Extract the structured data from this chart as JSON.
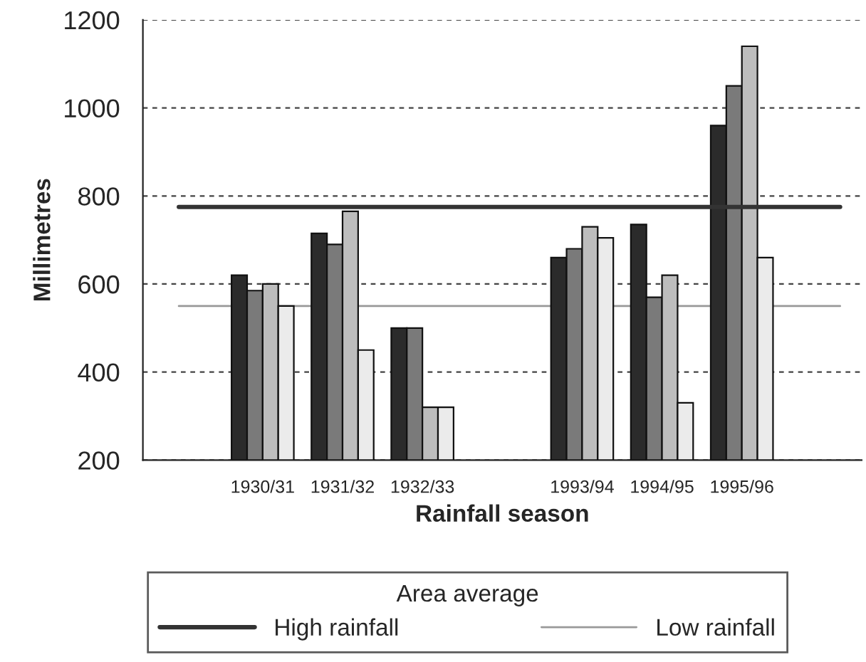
{
  "chart_data": {
    "type": "bar",
    "xlabel": "Rainfall season",
    "ylabel": "Millimetres",
    "legend_title": "Area average",
    "categories": [
      null,
      "1930/31",
      "1931/32",
      "1932/33",
      null,
      "1993/94",
      "1994/95",
      "1995/96",
      null
    ],
    "series": [
      {
        "color": "#2b2b2b",
        "values": [
          null,
          620,
          715,
          500,
          null,
          660,
          735,
          960,
          null
        ]
      },
      {
        "color": "#7a7a7a",
        "values": [
          null,
          585,
          690,
          500,
          null,
          680,
          570,
          1050,
          null
        ]
      },
      {
        "color": "#bdbdbd",
        "values": [
          null,
          600,
          765,
          320,
          null,
          730,
          620,
          1140,
          null
        ]
      },
      {
        "color": "#ebebeb",
        "values": [
          null,
          550,
          450,
          320,
          null,
          705,
          330,
          660,
          null
        ]
      }
    ],
    "ylim": [
      200,
      1200
    ],
    "yticks": [
      200,
      400,
      600,
      800,
      1000,
      1200
    ],
    "ref_lines": [
      {
        "axis": "y",
        "value": 775,
        "label": "High rainfall",
        "color": "#333333"
      },
      {
        "axis": "y",
        "value": 550,
        "label": "Low rainfall",
        "color": "#999999"
      }
    ],
    "grid": "y",
    "legend": "bottom"
  }
}
